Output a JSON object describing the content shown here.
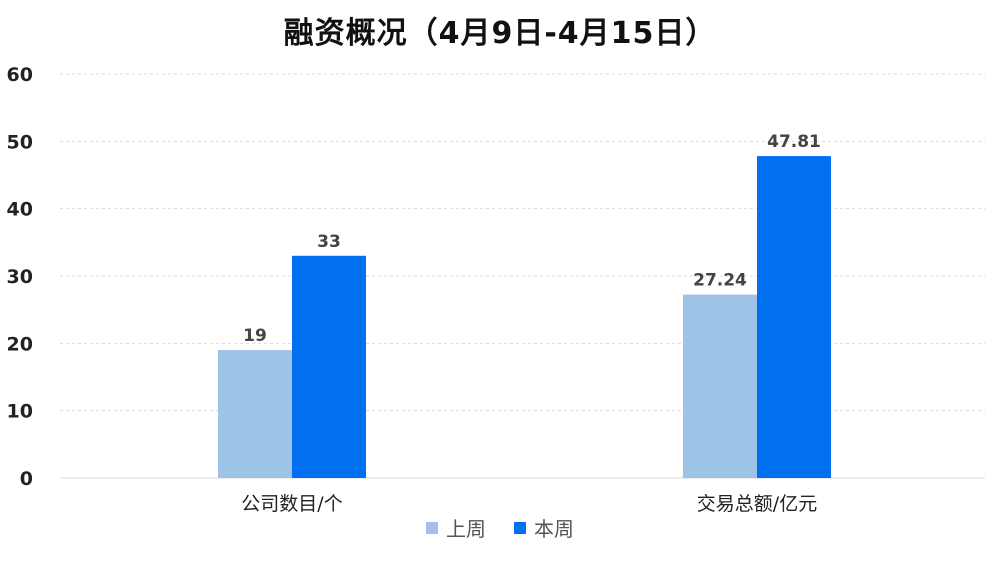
{
  "chart_data": {
    "type": "bar",
    "title": "融资概况（4月9日-4月15日）",
    "categories": [
      "公司数目/个",
      "交易总额/亿元"
    ],
    "series": [
      {
        "name": "上周",
        "values": [
          19,
          27.24
        ],
        "color": "#9DC3E6"
      },
      {
        "name": "本周",
        "values": [
          33,
          47.81
        ],
        "color": "#0070F0"
      }
    ],
    "data_labels": [
      [
        "19",
        "27.24"
      ],
      [
        "33",
        "47.81"
      ]
    ],
    "ylim": [
      0,
      60
    ],
    "yticks": [
      0,
      10,
      20,
      30,
      40,
      50,
      60
    ],
    "grid": true,
    "legend_position": "bottom"
  }
}
